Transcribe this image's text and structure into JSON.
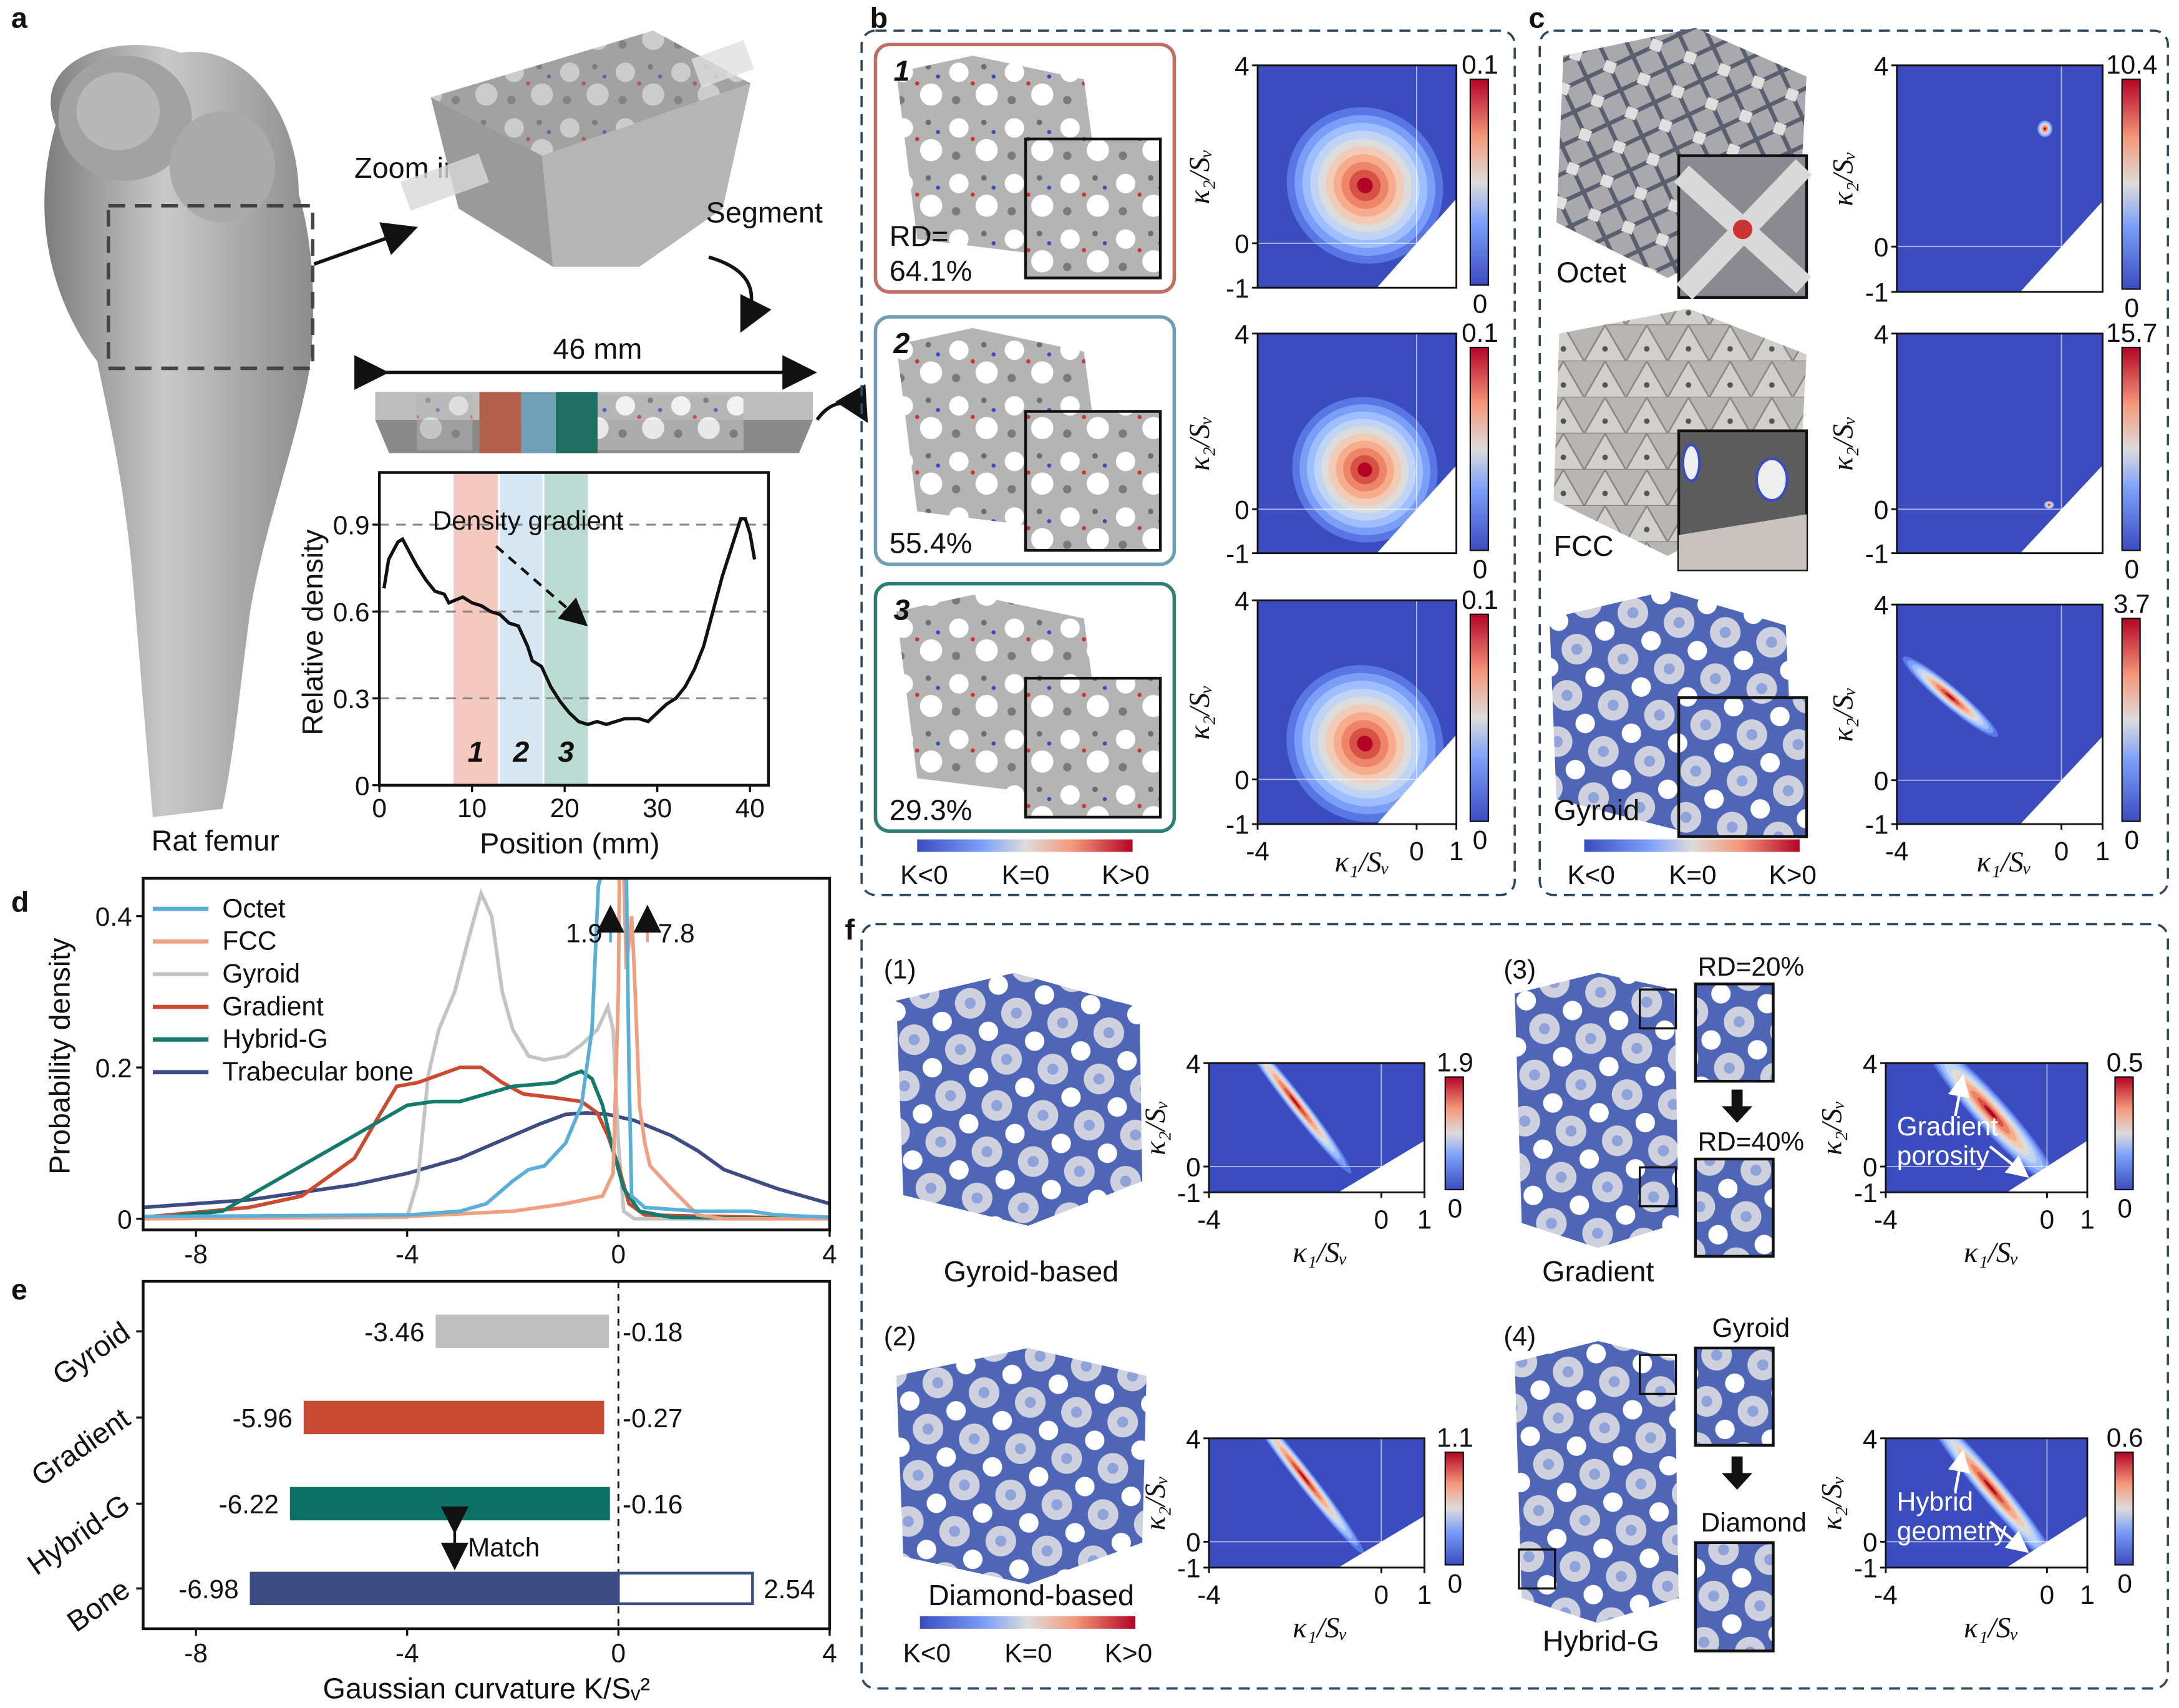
{
  "panel_labels": {
    "a": "a",
    "b": "b",
    "c": "c",
    "d": "d",
    "e": "e",
    "f": "f"
  },
  "panel_a": {
    "zoom_in": "Zoom in",
    "segment": "Segment",
    "length": "46 mm",
    "femur_label": "Rat femur",
    "density_gradient": "Density gradient",
    "region_labels": [
      "1",
      "2",
      "3"
    ]
  },
  "panel_b": {
    "samples": [
      {
        "number": "1",
        "rd_prefix": "RD=",
        "rd": "64.1%",
        "color": "#c0705f"
      },
      {
        "number": "2",
        "rd_prefix": "",
        "rd": "55.4%",
        "color": "#6f9fb5"
      },
      {
        "number": "3",
        "rd_prefix": "",
        "rd": "29.3%",
        "color": "#2f7f73"
      }
    ],
    "colorbar_labels": [
      "K<0",
      "K=0",
      "K>0"
    ]
  },
  "panel_c": {
    "structures": [
      "Octet",
      "FCC",
      "Gyroid"
    ],
    "colorbar_labels": [
      "K<0",
      "K=0",
      "K>0"
    ]
  },
  "panel_f": {
    "subpanels": [
      {
        "index": "(1)",
        "name": "Gyroid-based"
      },
      {
        "index": "(2)",
        "name": "Diamond-based"
      },
      {
        "index": "(3)",
        "name": "Gradient",
        "inset_top": "RD=20%",
        "inset_bottom": "RD=40%",
        "annotation": [
          "Gradient",
          "porosity"
        ]
      },
      {
        "index": "(4)",
        "name": "Hybrid-G",
        "inset_top": "Gyroid",
        "inset_bottom": "Diamond",
        "annotation": [
          "Hybrid",
          "geometry"
        ]
      }
    ],
    "colorbar_labels": [
      "K<0",
      "K=0",
      "K>0"
    ]
  },
  "colors": {
    "cool": "#3b4cc0",
    "warm": "#b40426",
    "neutral": "#dddcdc"
  },
  "chart_data": [
    {
      "id": "a",
      "type": "line",
      "xlabel": "Position (mm)",
      "ylabel": "Relative density",
      "xlim": [
        0,
        42
      ],
      "ylim": [
        0,
        1.08
      ],
      "xticks": [
        "0",
        "10",
        "20",
        "30",
        "40"
      ],
      "yticks": [
        "0",
        "0.3",
        "0.6",
        "0.9"
      ],
      "gridlines_y": [
        0.3,
        0.6,
        0.9
      ],
      "bands": [
        {
          "label": "1",
          "from": 8,
          "to": 12.8,
          "color": "#f3c9c0"
        },
        {
          "label": "2",
          "from": 13,
          "to": 17.6,
          "color": "#d6e6f3"
        },
        {
          "label": "3",
          "from": 17.8,
          "to": 22.5,
          "color": "#bcdcd3"
        }
      ],
      "x": [
        0.5,
        1,
        2,
        2.5,
        3,
        4,
        5,
        6,
        7,
        7.5,
        9,
        10,
        11,
        12,
        13,
        14,
        15,
        16,
        16.5,
        17.5,
        18.5,
        19.5,
        20.5,
        21.5,
        22.5,
        23.5,
        24.5,
        25.5,
        26.5,
        28,
        29,
        30,
        31,
        32,
        33,
        34,
        35,
        36,
        37,
        38,
        39,
        39.5,
        40,
        40.5
      ],
      "y": [
        0.68,
        0.78,
        0.84,
        0.85,
        0.82,
        0.76,
        0.71,
        0.67,
        0.66,
        0.63,
        0.65,
        0.63,
        0.62,
        0.6,
        0.59,
        0.56,
        0.55,
        0.48,
        0.43,
        0.41,
        0.34,
        0.29,
        0.25,
        0.22,
        0.21,
        0.22,
        0.21,
        0.22,
        0.23,
        0.23,
        0.22,
        0.25,
        0.28,
        0.3,
        0.34,
        0.4,
        0.48,
        0.6,
        0.72,
        0.82,
        0.92,
        0.92,
        0.87,
        0.78
      ]
    },
    {
      "id": "d",
      "type": "line",
      "xlabel": "",
      "ylabel": "Probability density",
      "xlim": [
        -9,
        4
      ],
      "ylim": [
        0,
        0.45
      ],
      "xticks": [
        "-8",
        "-4",
        "0",
        "4"
      ],
      "yticks": [
        "0",
        "0.2",
        "0.4"
      ],
      "legend": "top-left",
      "annotations": [
        {
          "text": "1.9",
          "series": "Octet"
        },
        {
          "text": "7.8",
          "series": "FCC"
        }
      ],
      "series": [
        {
          "name": "Octet",
          "color": "#5aafd9",
          "x": [
            -9,
            -4,
            -3,
            -2.5,
            -2,
            -1.7,
            -1.4,
            -1,
            -0.7,
            -0.5,
            -0.38,
            -0.3,
            0.15,
            0.2,
            0.25,
            0.5,
            1.5,
            2.5,
            3,
            4
          ],
          "y": [
            0.003,
            0.005,
            0.01,
            0.02,
            0.05,
            0.065,
            0.07,
            0.1,
            0.15,
            0.25,
            0.44,
            0.46,
            0.46,
            0.2,
            0.03,
            0.015,
            0.01,
            0.01,
            0.005,
            0.002
          ]
        },
        {
          "name": "FCC",
          "color": "#f0a080",
          "x": [
            -9,
            -4,
            -2,
            -1,
            -0.3,
            -0.1,
            0,
            0.02,
            0.1,
            0.15,
            0.25,
            0.3,
            0.4,
            0.5,
            0.6,
            1,
            1.5,
            2,
            4
          ],
          "y": [
            0,
            0.003,
            0.01,
            0.02,
            0.03,
            0.06,
            0.3,
            0.46,
            0.46,
            0.33,
            0.4,
            0.33,
            0.15,
            0.1,
            0.07,
            0.04,
            0.005,
            0,
            0
          ]
        },
        {
          "name": "Gyroid",
          "color": "#c4c4c4",
          "x": [
            -9,
            -4,
            -3.8,
            -3.6,
            -3.4,
            -3.1,
            -2.8,
            -2.6,
            -2.4,
            -2.2,
            -2,
            -1.7,
            -1.4,
            -1,
            -0.7,
            -0.4,
            -0.2,
            -0.1,
            0,
            0.1,
            0.3,
            4
          ],
          "y": [
            0,
            0.002,
            0.05,
            0.19,
            0.25,
            0.3,
            0.38,
            0.43,
            0.4,
            0.3,
            0.25,
            0.215,
            0.21,
            0.215,
            0.23,
            0.25,
            0.28,
            0.25,
            0.1,
            0.01,
            0,
            0
          ]
        },
        {
          "name": "Gradient",
          "color": "#cc4a30",
          "x": [
            -9,
            -7,
            -6,
            -5,
            -4.5,
            -4.2,
            -3.8,
            -3.4,
            -3,
            -2.6,
            -2.2,
            -1.8,
            -1.2,
            -0.7,
            -0.4,
            -0.2,
            0,
            0.2,
            0.5,
            4
          ],
          "y": [
            0.002,
            0.015,
            0.03,
            0.08,
            0.14,
            0.175,
            0.18,
            0.19,
            0.2,
            0.2,
            0.18,
            0.165,
            0.16,
            0.155,
            0.14,
            0.11,
            0.07,
            0.02,
            0.005,
            0
          ]
        },
        {
          "name": "Hybrid-G",
          "color": "#137a6c",
          "x": [
            -9,
            -7.5,
            -6.5,
            -5.5,
            -5,
            -4.5,
            -4,
            -3.5,
            -3,
            -2.5,
            -2,
            -1.5,
            -1.2,
            -0.9,
            -0.7,
            -0.5,
            -0.3,
            -0.1,
            0.1,
            0.4,
            1,
            4
          ],
          "y": [
            0,
            0.01,
            0.05,
            0.09,
            0.11,
            0.13,
            0.15,
            0.155,
            0.155,
            0.165,
            0.175,
            0.178,
            0.18,
            0.19,
            0.195,
            0.185,
            0.15,
            0.09,
            0.04,
            0.01,
            0.002,
            0
          ]
        },
        {
          "name": "Trabecular bone",
          "color": "#3e4c84",
          "x": [
            -9,
            -7,
            -6,
            -5,
            -4,
            -3,
            -2,
            -1.5,
            -1,
            -0.6,
            -0.2,
            0.3,
            1,
            1.5,
            2,
            3,
            4
          ],
          "y": [
            0.015,
            0.025,
            0.035,
            0.045,
            0.06,
            0.08,
            0.11,
            0.125,
            0.138,
            0.14,
            0.138,
            0.13,
            0.11,
            0.09,
            0.065,
            0.04,
            0.02
          ]
        }
      ]
    },
    {
      "id": "e",
      "type": "bar",
      "xlabel": "Gaussian curvature K/Sᵥ²",
      "xlim": [
        -9,
        4
      ],
      "xticks": [
        "-8",
        "-4",
        "0",
        "4"
      ],
      "categories": [
        "Gyroid",
        "Gradient",
        "Hybrid-G",
        "Bone"
      ],
      "series": [
        {
          "values_min": [
            -3.46,
            -5.96,
            -6.22,
            -6.98
          ],
          "values_max": [
            -0.18,
            -0.27,
            -0.16,
            2.54
          ],
          "labels_min": [
            "-3.46",
            "-5.96",
            "-6.22",
            "-6.98"
          ],
          "labels_max": [
            "-0.18",
            "-0.27",
            "-0.16",
            "2.54"
          ],
          "colors": [
            "#c0c0c0",
            "#c84a32",
            "#0d7066",
            "#3e4c84"
          ]
        }
      ],
      "annotation": "Match"
    },
    {
      "id": "b1",
      "type": "heatmap",
      "xlabel": "κ₁/Sᵥ",
      "ylabel": "κ₂/Sᵥ",
      "xlim": [
        -4,
        1
      ],
      "ylim": [
        -1,
        4
      ],
      "xticks": [
        "-4",
        "0",
        "1"
      ],
      "yticks": [
        "4",
        "0",
        "-1"
      ],
      "colorbar": [
        "0",
        "0.1"
      ],
      "peak": [
        -1.3,
        1.3
      ],
      "spread": [
        1.6,
        1.5
      ],
      "angle": -45,
      "shape": "broad"
    },
    {
      "id": "b2",
      "type": "heatmap",
      "xlabel": "κ₁/Sᵥ",
      "ylabel": "κ₂/Sᵥ",
      "xlim": [
        -4,
        1
      ],
      "ylim": [
        -1,
        4
      ],
      "xticks": [
        "-4",
        "0",
        "1"
      ],
      "yticks": [
        "4",
        "0",
        "-1"
      ],
      "colorbar": [
        "0",
        "0.1"
      ],
      "peak": [
        -1.3,
        0.9
      ],
      "spread": [
        1.5,
        1.4
      ],
      "angle": -45,
      "shape": "broad"
    },
    {
      "id": "b3",
      "type": "heatmap",
      "xlabel": "κ₁/Sᵥ",
      "ylabel": "κ₂/Sᵥ",
      "xlim": [
        -4,
        1
      ],
      "ylim": [
        -1,
        4
      ],
      "xticks": [
        "-4",
        "0",
        "1"
      ],
      "yticks": [
        "4",
        "0",
        "-1"
      ],
      "colorbar": [
        "0",
        "0.1"
      ],
      "peak": [
        -1.3,
        0.8
      ],
      "spread": [
        1.6,
        1.5
      ],
      "angle": -45,
      "shape": "broad"
    },
    {
      "id": "c1",
      "type": "heatmap",
      "xlabel": "κ₁/Sᵥ",
      "ylabel": "κ₂/Sᵥ",
      "xlim": [
        -4,
        1
      ],
      "ylim": [
        -1,
        4
      ],
      "xticks": [
        "-4",
        "0",
        "1"
      ],
      "yticks": [
        "4",
        "0",
        "-1"
      ],
      "colorbar": [
        "0",
        "10.4"
      ],
      "peak": [
        -0.4,
        2.6
      ],
      "spread": [
        0.12,
        0.12
      ],
      "angle": 0,
      "shape": "spot"
    },
    {
      "id": "c2",
      "type": "heatmap",
      "xlabel": "κ₁/Sᵥ",
      "ylabel": "κ₂/Sᵥ",
      "xlim": [
        -4,
        1
      ],
      "ylim": [
        -1,
        4
      ],
      "xticks": [
        "-4",
        "0",
        "1"
      ],
      "yticks": [
        "4",
        "0",
        "-1"
      ],
      "colorbar": [
        "0",
        "15.7"
      ],
      "peak": [
        -0.3,
        0.1
      ],
      "spread": [
        0.08,
        0.06
      ],
      "angle": 0,
      "shape": "spot"
    },
    {
      "id": "c3",
      "type": "heatmap",
      "xlabel": "κ₁/Sᵥ",
      "ylabel": "κ₂/Sᵥ",
      "xlim": [
        -4,
        1
      ],
      "ylim": [
        -1,
        4
      ],
      "xticks": [
        "-4",
        "0",
        "1"
      ],
      "yticks": [
        "4",
        "0",
        "-1"
      ],
      "colorbar": [
        "0",
        "3.7"
      ],
      "peak": [
        -2.7,
        1.9
      ],
      "spread": [
        1.0,
        0.15
      ],
      "angle": 40,
      "shape": "streak"
    },
    {
      "id": "f1",
      "type": "heatmap",
      "xlabel": "κ₁/Sᵥ",
      "ylabel": "κ₂/Sᵥ",
      "xlim": [
        -4,
        1
      ],
      "ylim": [
        -1,
        4
      ],
      "xticks": [
        "-4",
        "0",
        "1"
      ],
      "yticks": [
        "4",
        "0",
        "-1"
      ],
      "colorbar": [
        "0",
        "1.9"
      ],
      "peak": [
        -2.0,
        2.5
      ],
      "spread": [
        1.4,
        0.22
      ],
      "angle": 52,
      "shape": "streak"
    },
    {
      "id": "f2",
      "type": "heatmap",
      "xlabel": "κ₁/Sᵥ",
      "ylabel": "κ₂/Sᵥ",
      "xlim": [
        -4,
        1
      ],
      "ylim": [
        -1,
        4
      ],
      "xticks": [
        "-4",
        "0",
        "1"
      ],
      "yticks": [
        "4",
        "0",
        "-1"
      ],
      "colorbar": [
        "0",
        "1.1"
      ],
      "peak": [
        -1.8,
        2.5
      ],
      "spread": [
        1.5,
        0.22
      ],
      "angle": 52,
      "shape": "streak"
    },
    {
      "id": "f3",
      "type": "heatmap",
      "xlabel": "κ₁/Sᵥ",
      "ylabel": "κ₂/Sᵥ",
      "xlim": [
        -4,
        1
      ],
      "ylim": [
        -1,
        4
      ],
      "xticks": [
        "-4",
        "0",
        "1"
      ],
      "yticks": [
        "4",
        "0",
        "-1"
      ],
      "colorbar": [
        "0",
        "0.5"
      ],
      "peak": [
        -1.4,
        2.1
      ],
      "spread": [
        1.6,
        0.42
      ],
      "angle": 48,
      "shape": "streak"
    },
    {
      "id": "f4",
      "type": "heatmap",
      "xlabel": "κ₁/Sᵥ",
      "ylabel": "κ₂/Sᵥ",
      "xlim": [
        -4,
        1
      ],
      "ylim": [
        -1,
        4
      ],
      "xticks": [
        "-4",
        "0",
        "1"
      ],
      "yticks": [
        "4",
        "0",
        "-1"
      ],
      "colorbar": [
        "0",
        "0.6"
      ],
      "peak": [
        -1.4,
        2.1
      ],
      "spread": [
        1.7,
        0.32
      ],
      "angle": 50,
      "shape": "streak"
    }
  ]
}
